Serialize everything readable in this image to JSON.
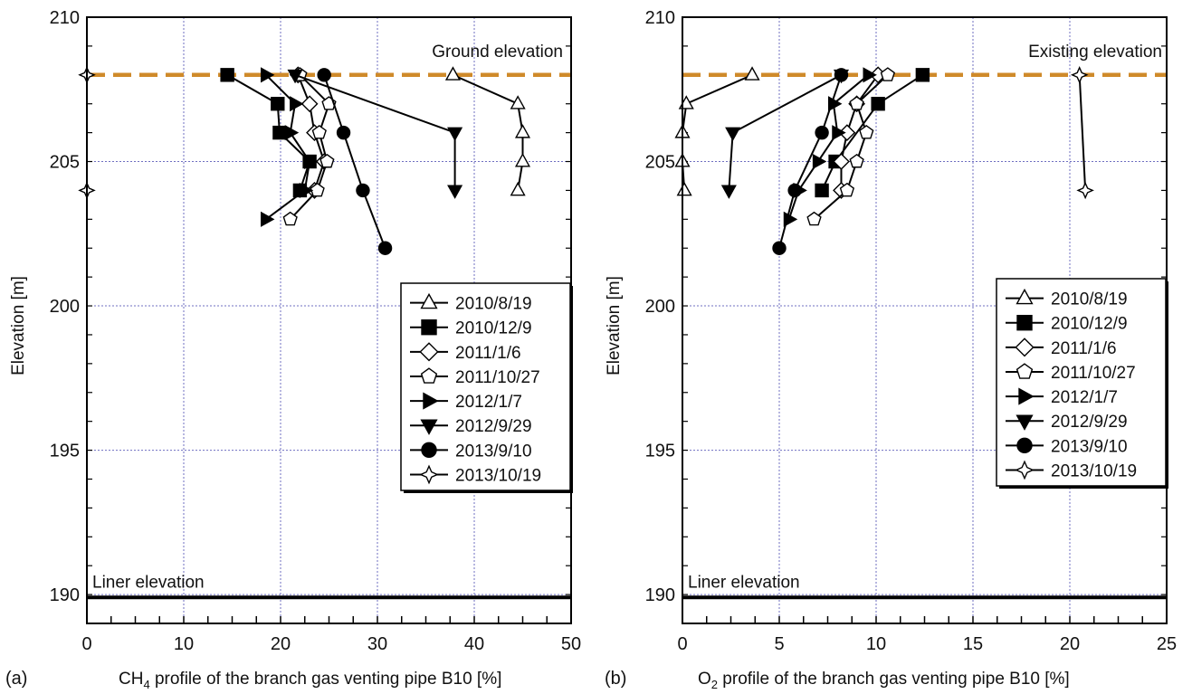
{
  "figure": {
    "ref_line_color": "#cf8a2a",
    "liner_line_color": "#000000",
    "grid_color": "#6f6fc0"
  },
  "chart_data": [
    {
      "type": "line",
      "panel_label": "(a)",
      "xlabel_prefix": "CH",
      "xlabel_sub": "4",
      "xlabel_rest": " profile of the branch gas venting pipe B10 [%]",
      "ylabel": "Elevation [m]",
      "xlim": [
        0,
        50
      ],
      "ylim": [
        189,
        210
      ],
      "x_ticks": [
        "0",
        "10",
        "20",
        "30",
        "40",
        "50"
      ],
      "y_ticks": [
        "190",
        "195",
        "200",
        "205",
        "210"
      ],
      "grid": true,
      "ref_line": {
        "y": 208,
        "label": "Ground elevation"
      },
      "liner_line": {
        "y": 189.9,
        "label": "Liner elevation"
      },
      "legend_position": "center-right",
      "series": [
        {
          "name": "2010/8/19",
          "marker": "triangle-up",
          "filled": false,
          "points": [
            [
              37.8,
              208
            ],
            [
              44.5,
              207
            ],
            [
              45.0,
              206
            ],
            [
              45.0,
              205
            ],
            [
              44.5,
              204
            ]
          ]
        },
        {
          "name": "2010/12/9",
          "marker": "square",
          "filled": true,
          "points": [
            [
              14.5,
              208
            ],
            [
              19.7,
              207
            ],
            [
              19.9,
              206
            ],
            [
              23.0,
              205
            ],
            [
              22.0,
              204
            ]
          ]
        },
        {
          "name": "2011/1/6",
          "marker": "diamond",
          "filled": false,
          "points": [
            [
              21.8,
              208
            ],
            [
              23.0,
              207
            ],
            [
              23.5,
              206
            ],
            [
              24.5,
              205
            ],
            [
              23.5,
              204
            ]
          ]
        },
        {
          "name": "2011/10/27",
          "marker": "pentagon",
          "filled": false,
          "points": [
            [
              22.0,
              208
            ],
            [
              25.0,
              207
            ],
            [
              24.0,
              206
            ],
            [
              24.8,
              205
            ],
            [
              23.8,
              204
            ],
            [
              21.0,
              203
            ]
          ]
        },
        {
          "name": "2012/1/7",
          "marker": "triangle-right",
          "filled": true,
          "points": [
            [
              18.5,
              208
            ],
            [
              21.5,
              207
            ],
            [
              21.0,
              206
            ],
            [
              23.0,
              205
            ],
            [
              22.5,
              204
            ],
            [
              18.5,
              203
            ]
          ]
        },
        {
          "name": "2012/9/29",
          "marker": "triangle-down",
          "filled": true,
          "points": [
            [
              21.5,
              208
            ],
            [
              38.0,
              206
            ],
            [
              38.0,
              204
            ]
          ]
        },
        {
          "name": "2013/9/10",
          "marker": "circle",
          "filled": true,
          "points": [
            [
              24.5,
              208
            ],
            [
              26.5,
              206
            ],
            [
              28.5,
              204
            ],
            [
              30.8,
              202
            ]
          ]
        },
        {
          "name": "2013/10/19",
          "marker": "star4",
          "filled": false,
          "points": [
            [
              0.0,
              208
            ],
            [
              0.0,
              204
            ]
          ]
        }
      ]
    },
    {
      "type": "line",
      "panel_label": "(b)",
      "xlabel_prefix": "O",
      "xlabel_sub": "2",
      "xlabel_rest": " profile of the branch gas venting pipe B10 [%]",
      "ylabel": "Elevation [m]",
      "xlim": [
        0,
        25
      ],
      "ylim": [
        189,
        210
      ],
      "x_ticks": [
        "0",
        "5",
        "10",
        "15",
        "20",
        "25"
      ],
      "y_ticks": [
        "190",
        "195",
        "200",
        "205",
        "210"
      ],
      "grid": true,
      "ref_line": {
        "y": 208,
        "label": "Existing elevation"
      },
      "liner_line": {
        "y": 189.9,
        "label": "Liner elevation"
      },
      "legend_position": "center-right",
      "series": [
        {
          "name": "2010/8/19",
          "marker": "triangle-up",
          "filled": false,
          "points": [
            [
              3.6,
              208
            ],
            [
              0.2,
              207
            ],
            [
              0.0,
              206
            ],
            [
              0.0,
              205
            ],
            [
              0.1,
              204
            ]
          ]
        },
        {
          "name": "2010/12/9",
          "marker": "square",
          "filled": true,
          "points": [
            [
              12.4,
              208
            ],
            [
              10.1,
              207
            ],
            [
              7.9,
              205
            ],
            [
              7.2,
              204
            ]
          ]
        },
        {
          "name": "2011/1/6",
          "marker": "diamond",
          "filled": false,
          "points": [
            [
              10.1,
              208
            ],
            [
              9.0,
              207
            ],
            [
              8.5,
              206
            ],
            [
              8.2,
              205
            ],
            [
              8.2,
              204
            ]
          ]
        },
        {
          "name": "2011/10/27",
          "marker": "pentagon",
          "filled": false,
          "points": [
            [
              10.6,
              208
            ],
            [
              9.0,
              207
            ],
            [
              9.5,
              206
            ],
            [
              9.0,
              205
            ],
            [
              8.5,
              204
            ],
            [
              6.8,
              203
            ]
          ]
        },
        {
          "name": "2012/1/7",
          "marker": "triangle-right",
          "filled": true,
          "points": [
            [
              9.6,
              208
            ],
            [
              7.8,
              207
            ],
            [
              8.0,
              206
            ],
            [
              7.0,
              205
            ],
            [
              6.0,
              204
            ],
            [
              5.5,
              203
            ]
          ]
        },
        {
          "name": "2012/9/29",
          "marker": "triangle-down",
          "filled": true,
          "points": [
            [
              8.2,
              208
            ],
            [
              2.6,
              206
            ],
            [
              2.4,
              204
            ]
          ]
        },
        {
          "name": "2013/9/10",
          "marker": "circle",
          "filled": true,
          "points": [
            [
              8.2,
              208
            ],
            [
              7.2,
              206
            ],
            [
              5.8,
              204
            ],
            [
              5.0,
              202
            ]
          ]
        },
        {
          "name": "2013/10/19",
          "marker": "star4",
          "filled": false,
          "points": [
            [
              20.5,
              208
            ],
            [
              20.8,
              204
            ]
          ]
        }
      ]
    }
  ]
}
